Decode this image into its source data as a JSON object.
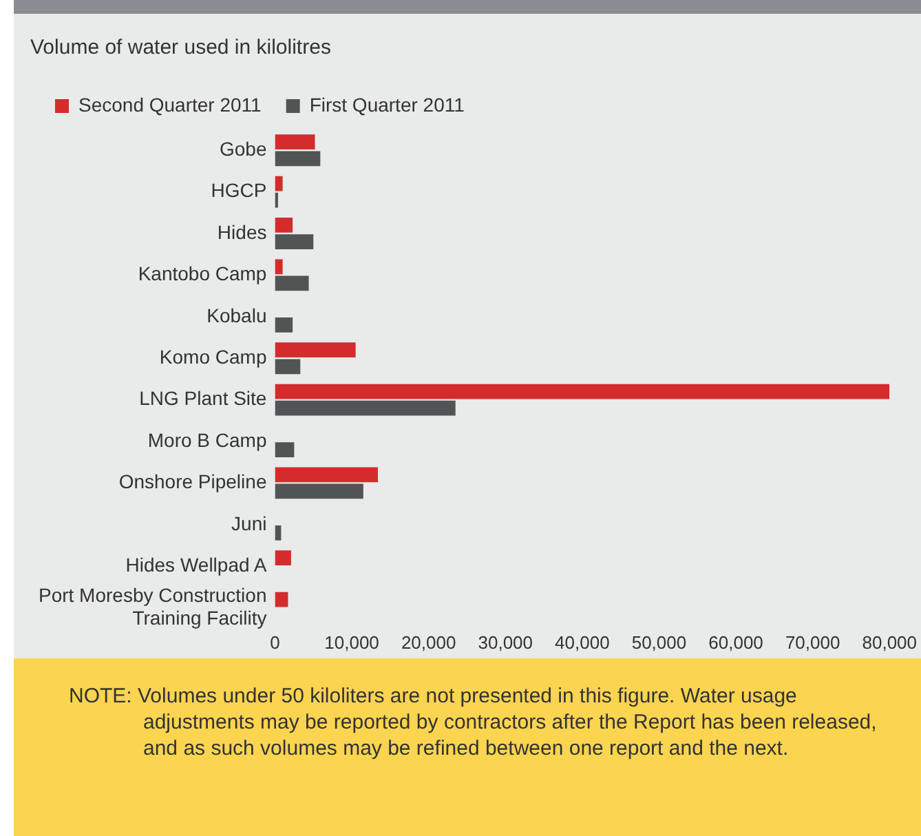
{
  "chart_data": {
    "type": "bar",
    "orientation": "horizontal",
    "title": "Volume of water used in kilolitres",
    "categories": [
      "Gobe",
      "HGCP",
      "Hides",
      "Kantobo Camp",
      "Kobalu",
      "Komo Camp",
      "LNG Plant Site",
      "Moro B Camp",
      "Onshore Pipeline",
      "Juni",
      "Hides Wellpad A",
      "Port Moresby Construction Training Facility"
    ],
    "series": [
      {
        "name": "Second Quarter 2011",
        "color": "#d42c2c",
        "values": [
          5200,
          1000,
          2300,
          1000,
          null,
          10500,
          80000,
          null,
          13400,
          null,
          2100,
          1700
        ]
      },
      {
        "name": "First Quarter 2011",
        "color": "#505455",
        "values": [
          5900,
          400,
          5000,
          4400,
          2300,
          3300,
          23500,
          2500,
          11500,
          800,
          null,
          null
        ]
      }
    ],
    "xlim": [
      0,
      80000
    ],
    "xticks": [
      {
        "value": 0,
        "label": "0"
      },
      {
        "value": 10000,
        "label": "10,000"
      },
      {
        "value": 20000,
        "label": "20,000"
      },
      {
        "value": 30000,
        "label": "30,000"
      },
      {
        "value": 40000,
        "label": "40,000"
      },
      {
        "value": 50000,
        "label": "50,000"
      },
      {
        "value": 60000,
        "label": "60,000"
      },
      {
        "value": 70000,
        "label": "70,000"
      },
      {
        "value": 80000,
        "label": "80,000"
      }
    ],
    "grid": false,
    "legend": "top left",
    "annotations": [
      "NOTE: Volumes under 50 kiloliters are not presented in this figure. Water usage adjustments may be reported by contractors after the Report has been released, and as such volumes may be refined between one report and the next."
    ]
  }
}
